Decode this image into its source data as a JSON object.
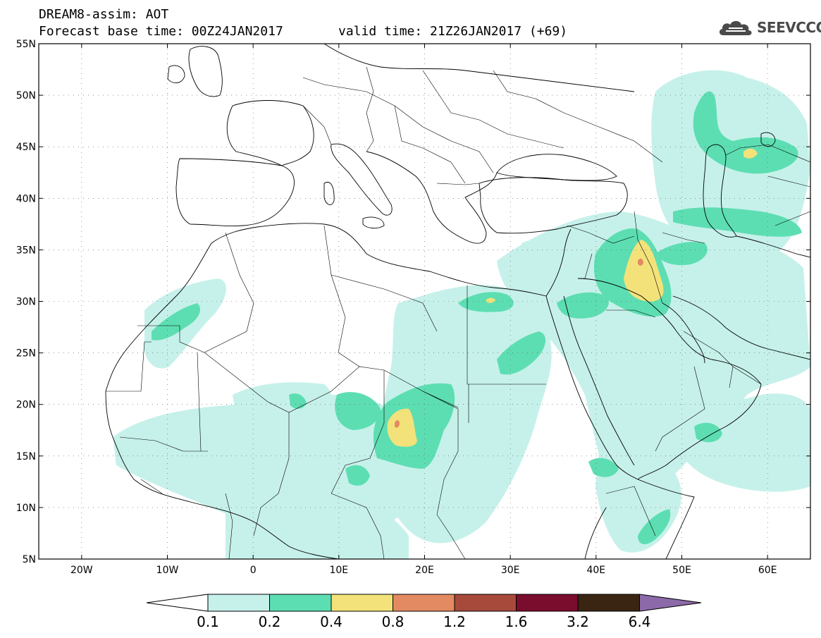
{
  "title": {
    "line1": "DREAM8-assim: AOT",
    "line2": "Forecast base time: 00Z24JAN2017",
    "valid": "valid time: 21Z26JAN2017 (+69)"
  },
  "logo": {
    "text": "SEEVCCC",
    "icon": "cloud-logo-icon"
  },
  "map": {
    "lon_range": [
      -25,
      65
    ],
    "lat_range": [
      5,
      55
    ],
    "lat_ticks": [
      {
        "value": 55,
        "label": "55N"
      },
      {
        "value": 50,
        "label": "50N"
      },
      {
        "value": 45,
        "label": "45N"
      },
      {
        "value": 40,
        "label": "40N"
      },
      {
        "value": 35,
        "label": "35N"
      },
      {
        "value": 30,
        "label": "30N"
      },
      {
        "value": 25,
        "label": "25N"
      },
      {
        "value": 20,
        "label": "20N"
      },
      {
        "value": 15,
        "label": "15N"
      },
      {
        "value": 10,
        "label": "10N"
      },
      {
        "value": 5,
        "label": "5N"
      }
    ],
    "lon_ticks": [
      {
        "value": -20,
        "label": "20W"
      },
      {
        "value": -10,
        "label": "10W"
      },
      {
        "value": 0,
        "label": "0"
      },
      {
        "value": 10,
        "label": "10E"
      },
      {
        "value": 20,
        "label": "20E"
      },
      {
        "value": 30,
        "label": "30E"
      },
      {
        "value": 40,
        "label": "40E"
      },
      {
        "value": 50,
        "label": "50E"
      },
      {
        "value": 60,
        "label": "60E"
      }
    ],
    "grid": "dotted"
  },
  "colorbar": {
    "labels": [
      "0.1",
      "0.2",
      "0.4",
      "0.8",
      "1.2",
      "1.6",
      "3.2",
      "6.4"
    ],
    "colors": {
      "below": "#ffffff",
      "c1": "#c6f1ea",
      "c2": "#5ddeb2",
      "c3": "#f3e27a",
      "c4": "#e38a62",
      "c5": "#a84a3b",
      "c6": "#7a0d2d",
      "c7": "#3a2513",
      "above": "#8c69a8"
    }
  }
}
